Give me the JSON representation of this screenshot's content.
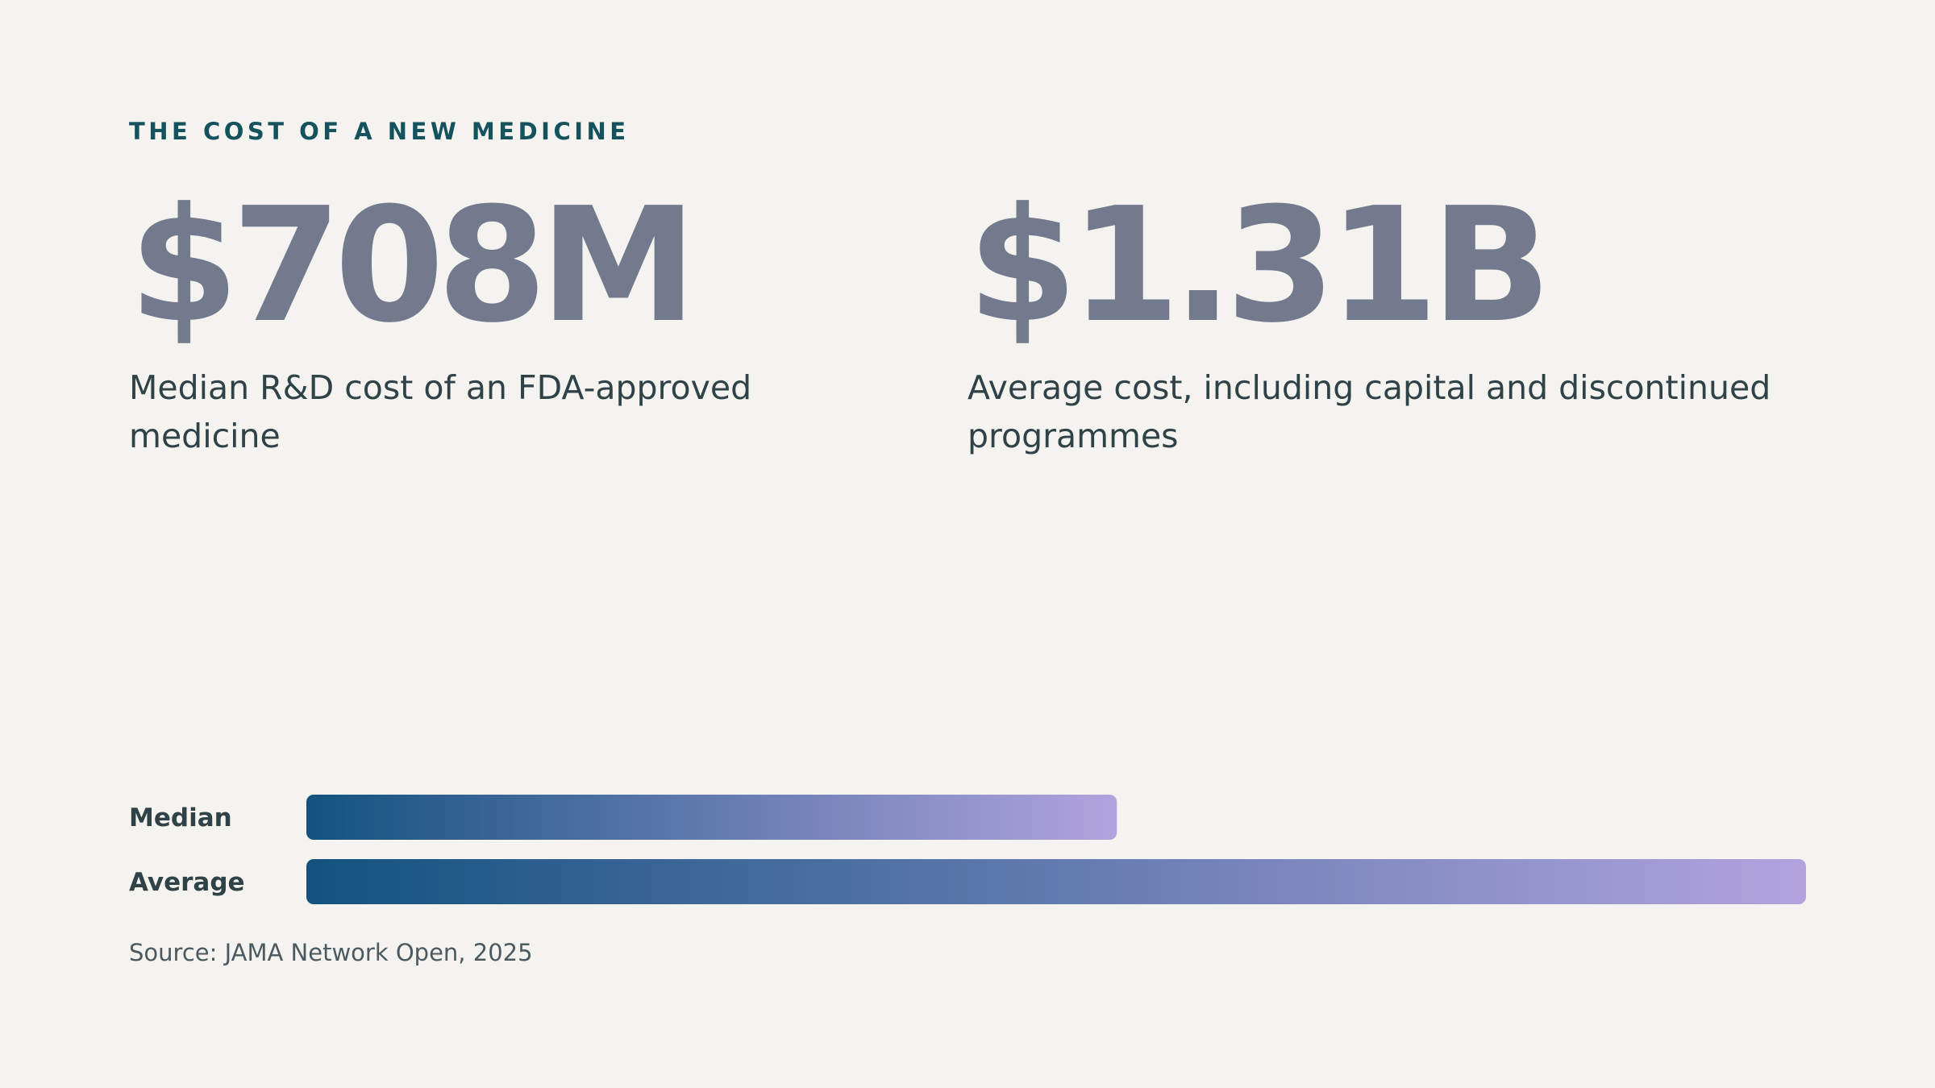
{
  "kicker": "THE COST OF A NEW MEDICINE",
  "stats": [
    {
      "value": "$708M",
      "label": "Median R&D cost of an FDA-approved medicine"
    },
    {
      "value": "$1.31B",
      "label": "Average cost, including capital and discontinued programmes"
    }
  ],
  "chart_data": {
    "type": "bar",
    "orientation": "horizontal",
    "categories": [
      "Median",
      "Average"
    ],
    "values": [
      708,
      1310
    ],
    "unit": "$M",
    "xlim": [
      0,
      1310
    ],
    "grid": false,
    "legend": "none"
  },
  "source": "Source: JAMA Network Open, 2025",
  "colors": {
    "background": "#f5f3ef",
    "kicker": "#14525e",
    "stat_value": "#737a8e",
    "text": "#2f4247",
    "bar_start": "#13527f",
    "bar_end": "#b2a3df"
  }
}
